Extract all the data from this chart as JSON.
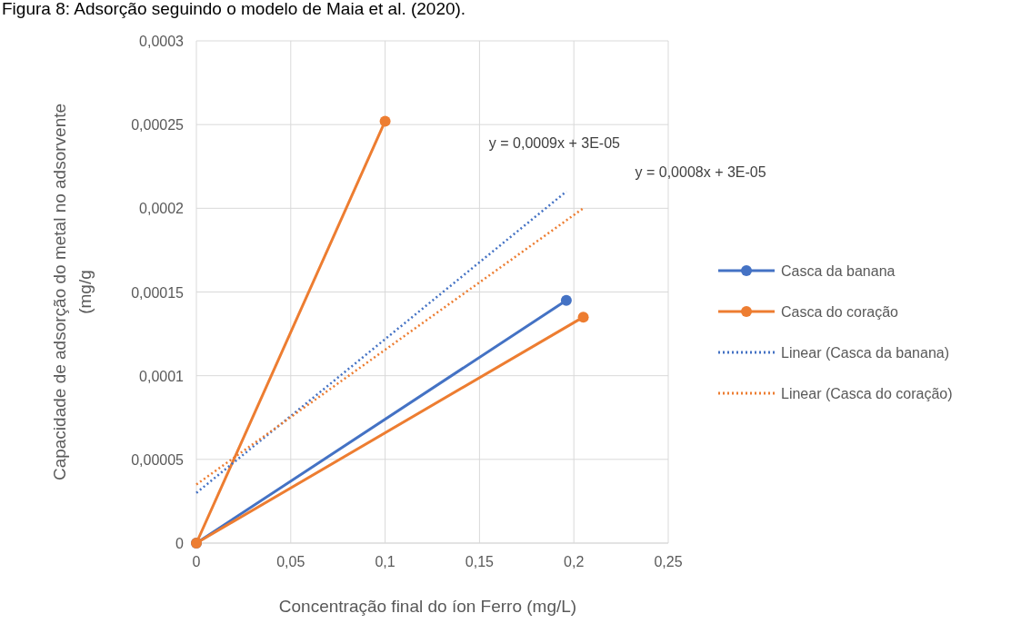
{
  "chart_data": {
    "type": "line",
    "title": "Figura 8: Adsorção seguindo o modelo de Maia et al. (2020).",
    "xlabel": "Concentração final do íon Ferro (mg/L)",
    "ylabel": "Capacidade de adsorção do metal no adsorvente (mg/g",
    "xlim": [
      0,
      0.25
    ],
    "ylim": [
      0,
      0.0003
    ],
    "xticks": [
      {
        "value": 0,
        "label": "0"
      },
      {
        "value": 0.05,
        "label": "0,05"
      },
      {
        "value": 0.1,
        "label": "0,1"
      },
      {
        "value": 0.15,
        "label": "0,15"
      },
      {
        "value": 0.2,
        "label": "0,2"
      },
      {
        "value": 0.25,
        "label": "0,25"
      }
    ],
    "yticks": [
      {
        "value": 0,
        "label": "0"
      },
      {
        "value": 5e-05,
        "label": "0,00005"
      },
      {
        "value": 0.0001,
        "label": "0,0001"
      },
      {
        "value": 0.00015,
        "label": "0,00015"
      },
      {
        "value": 0.0002,
        "label": "0,0002"
      },
      {
        "value": 0.00025,
        "label": "0,00025"
      },
      {
        "value": 0.0003,
        "label": "0,0003"
      }
    ],
    "grid": true,
    "legend": "right",
    "marker": "circle",
    "line_style": "solid",
    "series": [
      {
        "name": "Casca da banana",
        "color": "#4472c4",
        "x": [
          0,
          0.196
        ],
        "values": [
          0,
          0.000145
        ]
      },
      {
        "name": "Casca do coração",
        "color": "#ed7d31",
        "x": [
          0.1,
          0,
          0.205
        ],
        "values": [
          0.000252,
          0,
          0.000135
        ]
      },
      {
        "name": "Linear (Casca da banana)",
        "color": "#4472c4",
        "x": [
          0,
          0.196
        ],
        "values": [
          3e-05,
          0.00021
        ],
        "marker": "none",
        "line_style": "dotted"
      },
      {
        "name": "Linear (Casca do coração)",
        "color": "#ed7d31",
        "x": [
          0,
          0.205
        ],
        "values": [
          3.5e-05,
          0.0002
        ],
        "marker": "none",
        "line_style": "dotted"
      }
    ],
    "annotations": [
      "y = 0,0009x + 3E-05",
      "y = 0,0008x + 3E-05"
    ]
  }
}
